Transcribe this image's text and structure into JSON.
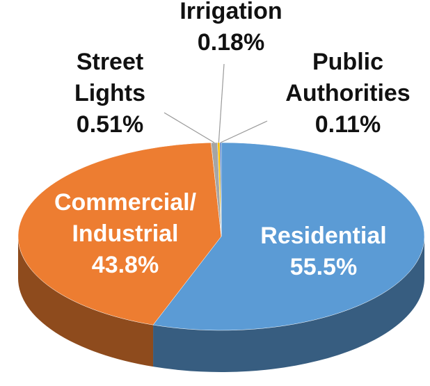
{
  "chart_data": {
    "type": "pie",
    "categories": [
      "Residential",
      "Commercial/ Industrial",
      "Street Lights",
      "Irrigation",
      "Public Authorities"
    ],
    "values": [
      55.5,
      43.8,
      0.51,
      0.18,
      0.11
    ],
    "value_labels": [
      "55.5%",
      "43.8%",
      "0.51%",
      "0.18%",
      "0.11%"
    ],
    "colors": [
      "#5b9bd5",
      "#ed7d31",
      "#a5a5a5",
      "#ffc000",
      "#4472c4"
    ]
  }
}
